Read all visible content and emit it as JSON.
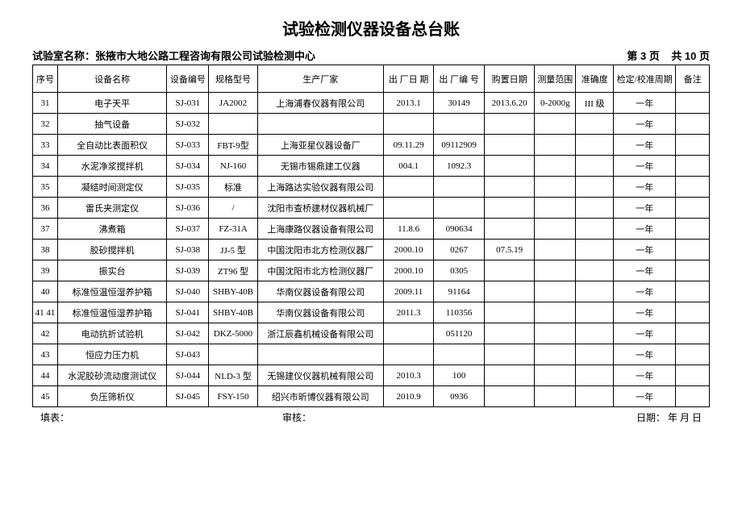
{
  "title": "试验检测仪器设备总台账",
  "header": {
    "lab_label": "试验室名称：",
    "lab_name": "张掖市大地公路工程咨询有限公司试验检测中心",
    "page": "第 3 页",
    "total": "共 10 页"
  },
  "cols": {
    "seq": "序号",
    "name": "设备名称",
    "code": "设备编号",
    "model": "规格型号",
    "mfr": "生产厂家",
    "fdate": "出 厂日 期",
    "fnum": "出 厂编  号",
    "pdate": "购置日期",
    "range": "测量范围",
    "acc": "准确度",
    "cal": "检定/校准周期",
    "note": "备注"
  },
  "rows": [
    {
      "seq": "31",
      "name": "电子天平",
      "code": "SJ-031",
      "model": "JA2002",
      "mfr": "上海浦春仪器有限公司",
      "fdate": "2013.1",
      "fnum": "30149",
      "pdate": "2013.6.20",
      "range": "0-2000g",
      "acc": "III 级",
      "cal": "一年",
      "note": ""
    },
    {
      "seq": "32",
      "name": "抽气设备",
      "code": "SJ-032",
      "model": "",
      "mfr": "",
      "fdate": "",
      "fnum": "",
      "pdate": "",
      "range": "",
      "acc": "",
      "cal": "一年",
      "note": ""
    },
    {
      "seq": "33",
      "name": "全自动比表面积仪",
      "code": "SJ-033",
      "model": "FBT-9型",
      "mfr": "上海亚星仪器设备厂",
      "fdate": "09.11.29",
      "fnum": "09112909",
      "pdate": "",
      "range": "",
      "acc": "",
      "cal": "一年",
      "note": ""
    },
    {
      "seq": "34",
      "name": "水泥净浆搅拌机",
      "code": "SJ-034",
      "model": "NJ-160",
      "mfr": "无锡市锡鼎建工仪器",
      "fdate": "004.1",
      "fnum": "1092.3",
      "pdate": "",
      "range": "",
      "acc": "",
      "cal": "一年",
      "note": ""
    },
    {
      "seq": "35",
      "name": "凝结时间测定仪",
      "code": "SJ-035",
      "model": "标准",
      "mfr": "上海路达实验仪器有限公司",
      "fdate": "",
      "fnum": "",
      "pdate": "",
      "range": "",
      "acc": "",
      "cal": "一年",
      "note": ""
    },
    {
      "seq": "36",
      "name": "雷氏夹测定仪",
      "code": "SJ-036",
      "model": "/",
      "mfr": "沈阳市查桥建材仪器机械厂",
      "fdate": "",
      "fnum": "",
      "pdate": "",
      "range": "",
      "acc": "",
      "cal": "一年",
      "note": ""
    },
    {
      "seq": "37",
      "name": "沸煮箱",
      "code": "SJ-037",
      "model": "FZ-31A",
      "mfr": "上海康路仪器设备有限公司",
      "fdate": "11.8.6",
      "fnum": "090634",
      "pdate": "",
      "range": "",
      "acc": "",
      "cal": "一年",
      "note": ""
    },
    {
      "seq": "38",
      "name": "胶砂搅拌机",
      "code": "SJ-038",
      "model": "JJ-5 型",
      "mfr": "中国沈阳市北方检测仪器厂",
      "fdate": "2000.10",
      "fnum": "0267",
      "pdate": "07.5.19",
      "range": "",
      "acc": "",
      "cal": "一年",
      "note": ""
    },
    {
      "seq": "39",
      "name": "振实台",
      "code": "SJ-039",
      "model": "ZT96 型",
      "mfr": "中国沈阳市北方检测仪器厂",
      "fdate": "2000.10",
      "fnum": "0305",
      "pdate": "",
      "range": "",
      "acc": "",
      "cal": "一年",
      "note": ""
    },
    {
      "seq": "40",
      "name": "标准恒温恒湿养护箱",
      "code": "SJ-040",
      "model": "SHBY-40B",
      "mfr": "华南仪器设备有限公司",
      "fdate": "2009.11",
      "fnum": "91164",
      "pdate": "",
      "range": "",
      "acc": "",
      "cal": "一年",
      "note": ""
    },
    {
      "seq": "41 41",
      "name": "标准恒温恒湿养护箱",
      "code": "SJ-041",
      "model": "SHBY-40B",
      "mfr": "华南仪器设备有限公司",
      "fdate": "2011.3",
      "fnum": "110356",
      "pdate": "",
      "range": "",
      "acc": "",
      "cal": "一年",
      "note": ""
    },
    {
      "seq": "42",
      "name": "电动抗折试验机",
      "code": "SJ-042",
      "model": "DKZ-5000",
      "mfr": "浙江辰鑫机械设备有限公司",
      "fdate": "",
      "fnum": "051120",
      "pdate": "",
      "range": "",
      "acc": "",
      "cal": "一年",
      "note": ""
    },
    {
      "seq": "43",
      "name": "恒应力压力机",
      "code": "SJ-043",
      "model": "",
      "mfr": "",
      "fdate": "",
      "fnum": "",
      "pdate": "",
      "range": "",
      "acc": "",
      "cal": "一年",
      "note": ""
    },
    {
      "seq": "44",
      "name": "水泥胶砂流动度测试仪",
      "code": "SJ-044",
      "model": "NLD-3 型",
      "mfr": "无锡建仪仪器机械有限公司",
      "fdate": "2010.3",
      "fnum": "100",
      "pdate": "",
      "range": "",
      "acc": "",
      "cal": "一年",
      "note": ""
    },
    {
      "seq": "45",
      "name": "负压筛析仪",
      "code": "SJ-045",
      "model": "FSY-150",
      "mfr": "绍兴市昕博仪器有限公司",
      "fdate": "2010.9",
      "fnum": "0936",
      "pdate": "",
      "range": "",
      "acc": "",
      "cal": "一年",
      "note": ""
    }
  ],
  "footer": {
    "fill": "填表：",
    "review": "审核：",
    "date": "日期：    年    月    日"
  }
}
